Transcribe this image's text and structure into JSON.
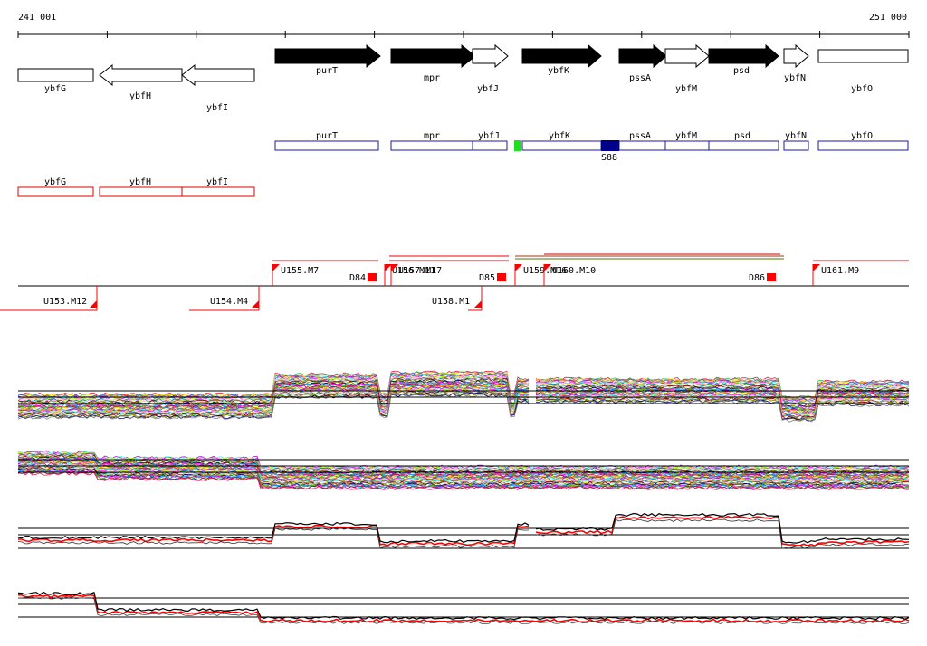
{
  "coordinate_ruler": {
    "start_label": "241 001",
    "end_label": "251 000"
  },
  "forward_genes": [
    {
      "label": "purT",
      "style": "filled"
    },
    {
      "label": "mpr",
      "style": "filled"
    },
    {
      "label": "ybfJ",
      "style": "outline"
    },
    {
      "label": "ybfK",
      "style": "filled"
    },
    {
      "label": "pssA",
      "style": "filled"
    },
    {
      "label": "ybfM",
      "style": "outline"
    },
    {
      "label": "psd",
      "style": "filled"
    },
    {
      "label": "ybfN",
      "style": "outline"
    },
    {
      "label": "ybfO",
      "style": "outline"
    }
  ],
  "reverse_genes": [
    {
      "label": "ybfG"
    },
    {
      "label": "ybfH"
    },
    {
      "label": "ybfI"
    }
  ],
  "forward_gene_boxes": [
    {
      "label": "purT"
    },
    {
      "label": "mpr"
    },
    {
      "label": "ybfJ"
    },
    {
      "label": "ybfK"
    },
    {
      "label": "pssA"
    },
    {
      "label": "ybfM"
    },
    {
      "label": "psd"
    },
    {
      "label": "ybfN"
    },
    {
      "label": "ybfO"
    }
  ],
  "site_marker": {
    "label": "S88",
    "color": "#00008b",
    "start_marker_color": "#00dd00"
  },
  "reverse_gene_boxes": [
    {
      "label": "ybfG"
    },
    {
      "label": "ybfH"
    },
    {
      "label": "ybfI"
    }
  ],
  "forward_features": [
    {
      "label": "U155.M7"
    },
    {
      "label": "D84"
    },
    {
      "label": "U156.M11"
    },
    {
      "label": "U157.M17"
    },
    {
      "label": "D85"
    },
    {
      "label": "U159.M16"
    },
    {
      "label": "U160.M10"
    },
    {
      "label": "D86"
    },
    {
      "label": "U161.M9"
    }
  ],
  "reverse_features": [
    {
      "label": "U153.M12"
    },
    {
      "label": "U154.M4"
    },
    {
      "label": "U158.M1"
    }
  ],
  "colors": {
    "gene_box_outline": "#1a1aa8",
    "reverse_box_outline": "#dd0000",
    "feature_red": "#ff0000",
    "trace_highlight": "#ff0000",
    "trace_reference": "#000000"
  },
  "expression_panels": [
    {
      "name": "forward-expression-panel",
      "traces": "multicolor"
    },
    {
      "name": "reverse-expression-panel",
      "traces": "multicolor"
    },
    {
      "name": "forward-summary-panel",
      "traces": "red-black"
    },
    {
      "name": "reverse-summary-panel",
      "traces": "red-black"
    }
  ]
}
